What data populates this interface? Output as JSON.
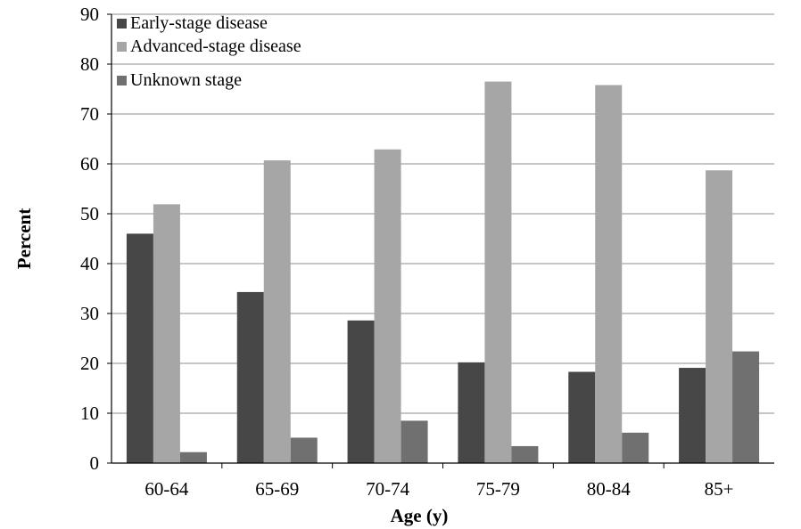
{
  "chart_data": {
    "type": "bar",
    "title": "",
    "xlabel": "Age (y)",
    "ylabel": "Percent",
    "ylim": [
      0,
      90
    ],
    "yticks": [
      0,
      10,
      20,
      30,
      40,
      50,
      60,
      70,
      80,
      90
    ],
    "grid": true,
    "legend_position": "top-left",
    "categories": [
      "60-64",
      "65-69",
      "70-74",
      "75-79",
      "80-84",
      "85+"
    ],
    "series": [
      {
        "name": "Early-stage disease",
        "color": "#474747",
        "values": [
          46.0,
          34.3,
          28.6,
          20.2,
          18.3,
          19.1
        ]
      },
      {
        "name": "Advanced-stage disease",
        "color": "#a6a6a6",
        "values": [
          51.9,
          60.7,
          62.9,
          76.5,
          75.8,
          58.7
        ]
      },
      {
        "name": "Unknown stage",
        "color": "#707070",
        "values": [
          2.2,
          5.1,
          8.5,
          3.4,
          6.1,
          22.4
        ]
      }
    ]
  }
}
